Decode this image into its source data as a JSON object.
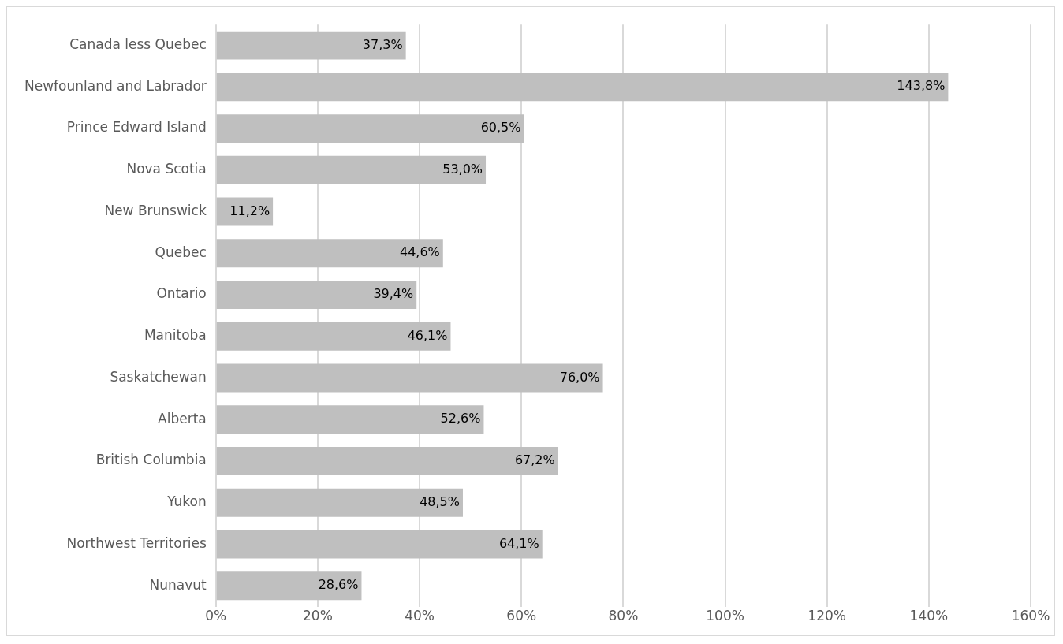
{
  "chart_data": {
    "type": "bar",
    "orientation": "horizontal",
    "categories": [
      "Canada less Quebec",
      "Newfounland and Labrador",
      "Prince Edward Island",
      "Nova Scotia",
      "New Brunswick",
      "Quebec",
      "Ontario",
      "Manitoba",
      "Saskatchewan",
      "Alberta",
      "British Columbia",
      "Yukon",
      "Northwest Territories",
      "Nunavut"
    ],
    "values": [
      37.3,
      143.8,
      60.5,
      53.0,
      11.2,
      44.6,
      39.4,
      46.1,
      76.0,
      52.6,
      67.2,
      48.5,
      64.1,
      28.6
    ],
    "value_labels": [
      "37,3%",
      "143,8%",
      "60,5%",
      "53,0%",
      "11,2%",
      "44,6%",
      "39,4%",
      "46,1%",
      "76,0%",
      "52,6%",
      "67,2%",
      "48,5%",
      "64,1%",
      "28,6%"
    ],
    "color": "#bfbfbf",
    "xlim": [
      0,
      160
    ],
    "xticks": [
      {
        "value": 0,
        "label": "0%"
      },
      {
        "value": 20,
        "label": "20%"
      },
      {
        "value": 40,
        "label": "40%"
      },
      {
        "value": 60,
        "label": "60%"
      },
      {
        "value": 80,
        "label": "80%"
      },
      {
        "value": 100,
        "label": "100%"
      },
      {
        "value": 120,
        "label": "120%"
      },
      {
        "value": 140,
        "label": "140%"
      },
      {
        "value": 160,
        "label": "160%"
      }
    ],
    "grid": "x",
    "legend": false
  }
}
